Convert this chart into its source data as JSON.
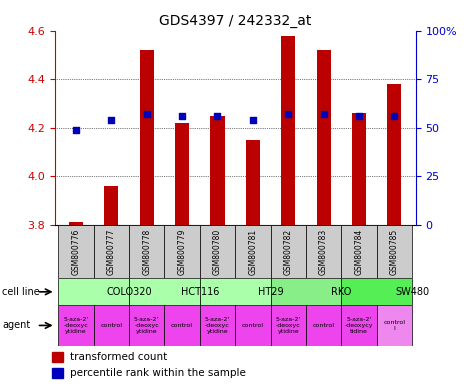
{
  "title": "GDS4397 / 242332_at",
  "samples": [
    "GSM800776",
    "GSM800777",
    "GSM800778",
    "GSM800779",
    "GSM800780",
    "GSM800781",
    "GSM800782",
    "GSM800783",
    "GSM800784",
    "GSM800785"
  ],
  "transformed_count": [
    3.81,
    3.96,
    4.52,
    4.22,
    4.25,
    4.15,
    4.58,
    4.52,
    4.26,
    4.38
  ],
  "percentile_rank": [
    49,
    54,
    57,
    56,
    56,
    54,
    57,
    57,
    56,
    56
  ],
  "ylim": [
    3.8,
    4.6
  ],
  "yticks_left": [
    3.8,
    4.0,
    4.2,
    4.4,
    4.6
  ],
  "yticks_right": [
    0,
    25,
    50,
    75,
    100
  ],
  "cell_lines": [
    {
      "label": "COLO320",
      "start": 0,
      "end": 2,
      "color": "#aaffaa"
    },
    {
      "label": "HCT116",
      "start": 2,
      "end": 4,
      "color": "#aaffaa"
    },
    {
      "label": "HT29",
      "start": 4,
      "end": 6,
      "color": "#aaffaa"
    },
    {
      "label": "RKO",
      "start": 6,
      "end": 8,
      "color": "#88ee88"
    },
    {
      "label": "SW480",
      "start": 8,
      "end": 10,
      "color": "#55ee55"
    }
  ],
  "agents": [
    {
      "label": "5-aza-2'\n-deoxyc\nytidine",
      "color": "#ee44ee"
    },
    {
      "label": "control",
      "color": "#ee44ee"
    },
    {
      "label": "5-aza-2'\n-deoxyc\nytidine",
      "color": "#ee44ee"
    },
    {
      "label": "control",
      "color": "#ee44ee"
    },
    {
      "label": "5-aza-2'\n-deoxyc\nytidine",
      "color": "#ee44ee"
    },
    {
      "label": "control",
      "color": "#ee44ee"
    },
    {
      "label": "5-aza-2'\n-deoxyc\nytidine",
      "color": "#ee44ee"
    },
    {
      "label": "control",
      "color": "#ee44ee"
    },
    {
      "label": "5-aza-2'\n-deoxycy\ntidine",
      "color": "#ee44ee"
    },
    {
      "label": "control\nl",
      "color": "#ee88ee"
    }
  ],
  "bar_color": "#bb0000",
  "dot_color": "#0000bb",
  "bar_width": 0.4,
  "grid_color": "black",
  "tick_color_left": "#cc0000",
  "tick_color_right": "#0000cc",
  "sample_box_color": "#cccccc",
  "legend_red": "transformed count",
  "legend_blue": "percentile rank within the sample"
}
